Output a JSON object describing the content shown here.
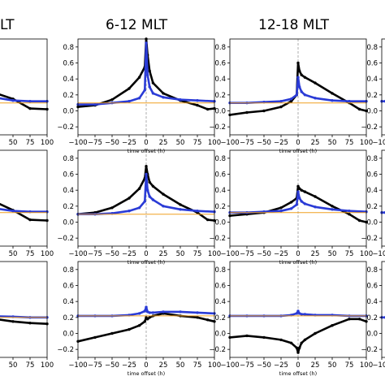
{
  "column_titles": [
    "LT",
    "6-12 MLT",
    "12-18 MLT",
    ""
  ],
  "xlabel": "time offset (h)",
  "x_ticks": [
    -100,
    -75,
    -50,
    -25,
    0,
    25,
    50,
    75,
    100
  ],
  "x_tick_labels": [
    "−100",
    "−75",
    "−50",
    "−25",
    "0",
    "25",
    "50",
    "75",
    "100"
  ],
  "y_ticks": [
    -0.2,
    0.0,
    0.2,
    0.4,
    0.6,
    0.8
  ],
  "y_tick_labels": [
    "−0.2",
    "0.0",
    "0.2",
    "0.4",
    "0.6",
    "0.8"
  ],
  "colors": {
    "black_series": "#000000",
    "blue_series": "#2a3bd6",
    "baseline": "#f0a020",
    "zero_line": "#9a9a9a"
  },
  "chart_data": [
    {
      "type": "line",
      "panel": "row1-col1",
      "xlim": [
        -100,
        100
      ],
      "ylim": [
        -0.3,
        0.9
      ],
      "series": [
        {
          "color_key": "black_series",
          "x": [
            -100,
            -50,
            0,
            25,
            50,
            75,
            100
          ],
          "y": [
            0.02,
            0.12,
            0.35,
            0.22,
            0.15,
            0.03,
            0.02
          ]
        },
        {
          "color_key": "blue_series",
          "x": [
            -100,
            -50,
            0,
            50,
            75,
            100
          ],
          "y": [
            0.08,
            0.09,
            0.2,
            0.13,
            0.12,
            0.12
          ]
        },
        {
          "color_key": "baseline",
          "x": [
            -100,
            100
          ],
          "y": [
            0.1,
            0.1
          ]
        }
      ]
    },
    {
      "type": "line",
      "panel": "row1-col2",
      "xlim": [
        -100,
        100
      ],
      "ylim": [
        -0.3,
        0.9
      ],
      "series": [
        {
          "color_key": "black_series",
          "x": [
            -100,
            -75,
            -50,
            -25,
            -10,
            -2,
            0,
            2,
            5,
            10,
            25,
            50,
            75,
            90,
            100
          ],
          "y": [
            0.05,
            0.07,
            0.14,
            0.28,
            0.42,
            0.55,
            0.9,
            0.7,
            0.5,
            0.35,
            0.22,
            0.13,
            0.07,
            0.02,
            0.03
          ]
        },
        {
          "color_key": "blue_series",
          "x": [
            -100,
            -75,
            -50,
            -25,
            -10,
            -2,
            0,
            2,
            5,
            10,
            25,
            50,
            75,
            100
          ],
          "y": [
            0.08,
            0.08,
            0.1,
            0.12,
            0.16,
            0.26,
            0.85,
            0.45,
            0.3,
            0.22,
            0.17,
            0.14,
            0.13,
            0.12
          ]
        },
        {
          "color_key": "baseline",
          "x": [
            -100,
            100
          ],
          "y": [
            0.1,
            0.1
          ]
        }
      ]
    },
    {
      "type": "line",
      "panel": "row1-col3",
      "xlim": [
        -100,
        100
      ],
      "ylim": [
        -0.3,
        0.9
      ],
      "series": [
        {
          "color_key": "black_series",
          "x": [
            -100,
            -75,
            -50,
            -25,
            -10,
            -2,
            0,
            2,
            5,
            10,
            25,
            50,
            75,
            90,
            100
          ],
          "y": [
            -0.05,
            -0.02,
            0.0,
            0.05,
            0.12,
            0.2,
            0.6,
            0.5,
            0.45,
            0.42,
            0.35,
            0.22,
            0.1,
            0.02,
            0.0
          ]
        },
        {
          "color_key": "blue_series",
          "x": [
            -100,
            -75,
            -50,
            -25,
            -10,
            -2,
            0,
            2,
            5,
            10,
            25,
            50,
            75,
            100
          ],
          "y": [
            0.1,
            0.1,
            0.11,
            0.12,
            0.15,
            0.2,
            0.42,
            0.3,
            0.24,
            0.2,
            0.16,
            0.13,
            0.12,
            0.12
          ]
        },
        {
          "color_key": "baseline",
          "x": [
            -100,
            100
          ],
          "y": [
            0.1,
            0.1
          ]
        }
      ]
    },
    {
      "type": "line",
      "panel": "row2-col1",
      "xlim": [
        -100,
        100
      ],
      "ylim": [
        -0.3,
        0.9
      ],
      "series": [
        {
          "color_key": "black_series",
          "x": [
            -100,
            -50,
            0,
            25,
            50,
            75,
            100
          ],
          "y": [
            0.05,
            0.12,
            0.35,
            0.25,
            0.15,
            0.03,
            0.02
          ]
        },
        {
          "color_key": "blue_series",
          "x": [
            -100,
            -50,
            0,
            50,
            75,
            100
          ],
          "y": [
            0.12,
            0.13,
            0.2,
            0.14,
            0.13,
            0.13
          ]
        },
        {
          "color_key": "baseline",
          "x": [
            -100,
            100
          ],
          "y": [
            0.12,
            0.12
          ]
        }
      ]
    },
    {
      "type": "line",
      "panel": "row2-col2",
      "xlim": [
        -100,
        100
      ],
      "ylim": [
        -0.3,
        0.9
      ],
      "series": [
        {
          "color_key": "black_series",
          "x": [
            -100,
            -75,
            -50,
            -25,
            -10,
            -2,
            0,
            2,
            5,
            10,
            25,
            50,
            75,
            90,
            100
          ],
          "y": [
            0.1,
            0.12,
            0.18,
            0.3,
            0.42,
            0.55,
            0.7,
            0.6,
            0.5,
            0.45,
            0.35,
            0.22,
            0.12,
            0.03,
            0.02
          ]
        },
        {
          "color_key": "blue_series",
          "x": [
            -100,
            -75,
            -50,
            -25,
            -10,
            -2,
            0,
            2,
            5,
            10,
            25,
            50,
            75,
            100
          ],
          "y": [
            0.1,
            0.1,
            0.11,
            0.14,
            0.18,
            0.26,
            0.6,
            0.4,
            0.32,
            0.28,
            0.2,
            0.16,
            0.14,
            0.13
          ]
        },
        {
          "color_key": "baseline",
          "x": [
            -100,
            100
          ],
          "y": [
            0.1,
            0.1
          ]
        }
      ]
    },
    {
      "type": "line",
      "panel": "row2-col3",
      "xlim": [
        -100,
        100
      ],
      "ylim": [
        -0.3,
        0.9
      ],
      "series": [
        {
          "color_key": "black_series",
          "x": [
            -100,
            -75,
            -50,
            -25,
            -10,
            -2,
            0,
            2,
            5,
            10,
            25,
            50,
            75,
            90,
            100
          ],
          "y": [
            0.08,
            0.1,
            0.12,
            0.18,
            0.25,
            0.3,
            0.45,
            0.42,
            0.4,
            0.38,
            0.32,
            0.2,
            0.1,
            0.02,
            0.0
          ]
        },
        {
          "color_key": "blue_series",
          "x": [
            -100,
            -75,
            -50,
            -25,
            -10,
            -2,
            0,
            2,
            5,
            10,
            25,
            50,
            75,
            100
          ],
          "y": [
            0.12,
            0.12,
            0.13,
            0.14,
            0.17,
            0.22,
            0.38,
            0.3,
            0.26,
            0.23,
            0.19,
            0.16,
            0.14,
            0.13
          ]
        },
        {
          "color_key": "baseline",
          "x": [
            -100,
            100
          ],
          "y": [
            0.12,
            0.12
          ]
        }
      ]
    },
    {
      "type": "line",
      "panel": "row3-col1",
      "xlim": [
        -100,
        100
      ],
      "ylim": [
        -0.3,
        0.9
      ],
      "series": [
        {
          "color_key": "black_series",
          "x": [
            -100,
            -50,
            0,
            25,
            50,
            75,
            100
          ],
          "y": [
            0.1,
            0.12,
            0.15,
            0.18,
            0.15,
            0.13,
            0.12
          ]
        },
        {
          "color_key": "blue_series",
          "x": [
            -100,
            -50,
            0,
            50,
            75,
            100
          ],
          "y": [
            0.2,
            0.21,
            0.22,
            0.21,
            0.2,
            0.2
          ]
        },
        {
          "color_key": "baseline",
          "x": [
            -100,
            100
          ],
          "y": [
            0.2,
            0.2
          ]
        }
      ]
    },
    {
      "type": "line",
      "panel": "row3-col2",
      "xlim": [
        -100,
        100
      ],
      "ylim": [
        -0.3,
        0.9
      ],
      "series": [
        {
          "color_key": "black_series",
          "x": [
            -100,
            -75,
            -50,
            -25,
            -10,
            -2,
            0,
            2,
            5,
            10,
            25,
            50,
            75,
            90,
            100
          ],
          "y": [
            -0.1,
            -0.05,
            0.0,
            0.05,
            0.1,
            0.15,
            0.2,
            0.18,
            0.2,
            0.22,
            0.25,
            0.22,
            0.2,
            0.17,
            0.15
          ]
        },
        {
          "color_key": "blue_series",
          "x": [
            -100,
            -75,
            -50,
            -25,
            -10,
            -2,
            0,
            2,
            5,
            10,
            25,
            50,
            75,
            100
          ],
          "y": [
            0.22,
            0.22,
            0.22,
            0.23,
            0.25,
            0.28,
            0.33,
            0.27,
            0.26,
            0.26,
            0.27,
            0.27,
            0.26,
            0.25
          ]
        },
        {
          "color_key": "baseline",
          "x": [
            -100,
            100
          ],
          "y": [
            0.22,
            0.22
          ]
        }
      ]
    },
    {
      "type": "line",
      "panel": "row3-col3",
      "xlim": [
        -100,
        100
      ],
      "ylim": [
        -0.3,
        0.9
      ],
      "series": [
        {
          "color_key": "black_series",
          "x": [
            -100,
            -75,
            -50,
            -25,
            -10,
            -2,
            0,
            2,
            5,
            10,
            25,
            50,
            75,
            90,
            100
          ],
          "y": [
            -0.05,
            -0.03,
            -0.05,
            -0.08,
            -0.12,
            -0.18,
            -0.24,
            -0.18,
            -0.12,
            -0.08,
            0.0,
            0.1,
            0.18,
            0.18,
            0.15
          ]
        },
        {
          "color_key": "blue_series",
          "x": [
            -100,
            -75,
            -50,
            -25,
            -10,
            -2,
            0,
            2,
            5,
            10,
            25,
            50,
            75,
            100
          ],
          "y": [
            0.22,
            0.22,
            0.22,
            0.22,
            0.23,
            0.25,
            0.28,
            0.25,
            0.24,
            0.24,
            0.23,
            0.23,
            0.22,
            0.22
          ]
        },
        {
          "color_key": "baseline",
          "x": [
            -100,
            100
          ],
          "y": [
            0.22,
            0.22
          ]
        }
      ]
    },
    {
      "type": "line",
      "panel": "row1-col4",
      "xlim": [
        -100,
        100
      ],
      "ylim": [
        -0.3,
        0.9
      ],
      "series": [
        {
          "color_key": "blue_series",
          "x": [
            -100,
            -95
          ],
          "y": [
            0.12,
            0.12
          ]
        }
      ]
    },
    {
      "type": "line",
      "panel": "row2-col4",
      "xlim": [
        -100,
        100
      ],
      "ylim": [
        -0.3,
        0.9
      ],
      "series": [
        {
          "color_key": "blue_series",
          "x": [
            -100,
            -95
          ],
          "y": [
            0.12,
            0.12
          ]
        }
      ]
    },
    {
      "type": "line",
      "panel": "row3-col4",
      "xlim": [
        -100,
        100
      ],
      "ylim": [
        -0.3,
        0.9
      ],
      "series": [
        {
          "color_key": "blue_series",
          "x": [
            -100,
            -95
          ],
          "y": [
            0.2,
            0.2
          ]
        }
      ]
    }
  ]
}
